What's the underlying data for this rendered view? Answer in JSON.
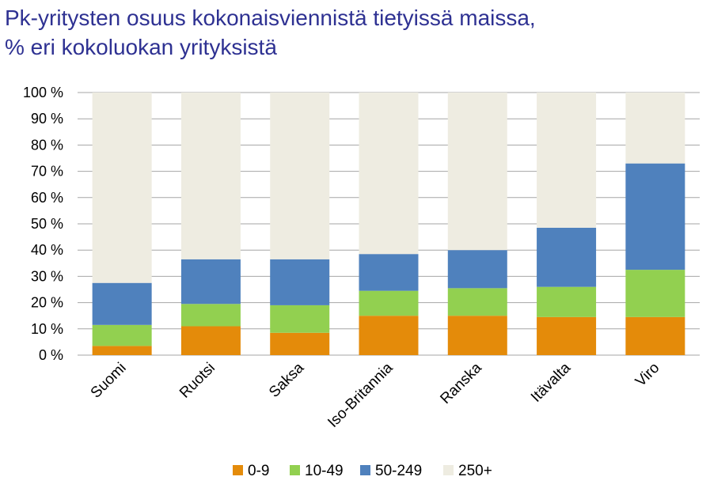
{
  "chart_data": {
    "type": "bar",
    "stacked": true,
    "title_lines": [
      "Pk-yritysten osuus kokonaisviennistä tietyissä maissa,",
      "% eri kokoluokan yrityksistä"
    ],
    "categories": [
      "Suomi",
      "Ruotsi",
      "Saksa",
      "Iso-Britannia",
      "Ranska",
      "Itävalta",
      "Viro"
    ],
    "series": [
      {
        "name": "0-9",
        "color": "#e48b0a",
        "values": [
          3.5,
          11,
          8.5,
          15,
          15,
          14.5,
          14.5
        ]
      },
      {
        "name": "10-49",
        "color": "#92d050",
        "values": [
          8,
          8.5,
          10.5,
          9.5,
          10.5,
          11.5,
          18
        ]
      },
      {
        "name": "50-249",
        "color": "#4f81bd",
        "values": [
          16,
          17,
          17.5,
          14,
          14.5,
          22.5,
          40.5
        ]
      },
      {
        "name": "250+",
        "color": "#eeece1",
        "values": [
          72.5,
          63.5,
          63.5,
          61.5,
          60,
          51.5,
          27
        ]
      }
    ],
    "yticks": [
      "0 %",
      "10 %",
      "20 %",
      "30 %",
      "40 %",
      "50 %",
      "60 %",
      "70 %",
      "80 %",
      "90 %",
      "100 %"
    ],
    "ylim": [
      0,
      100
    ],
    "grid": true,
    "gridline_color": "#a6a6a6",
    "legend_position": "bottom"
  }
}
